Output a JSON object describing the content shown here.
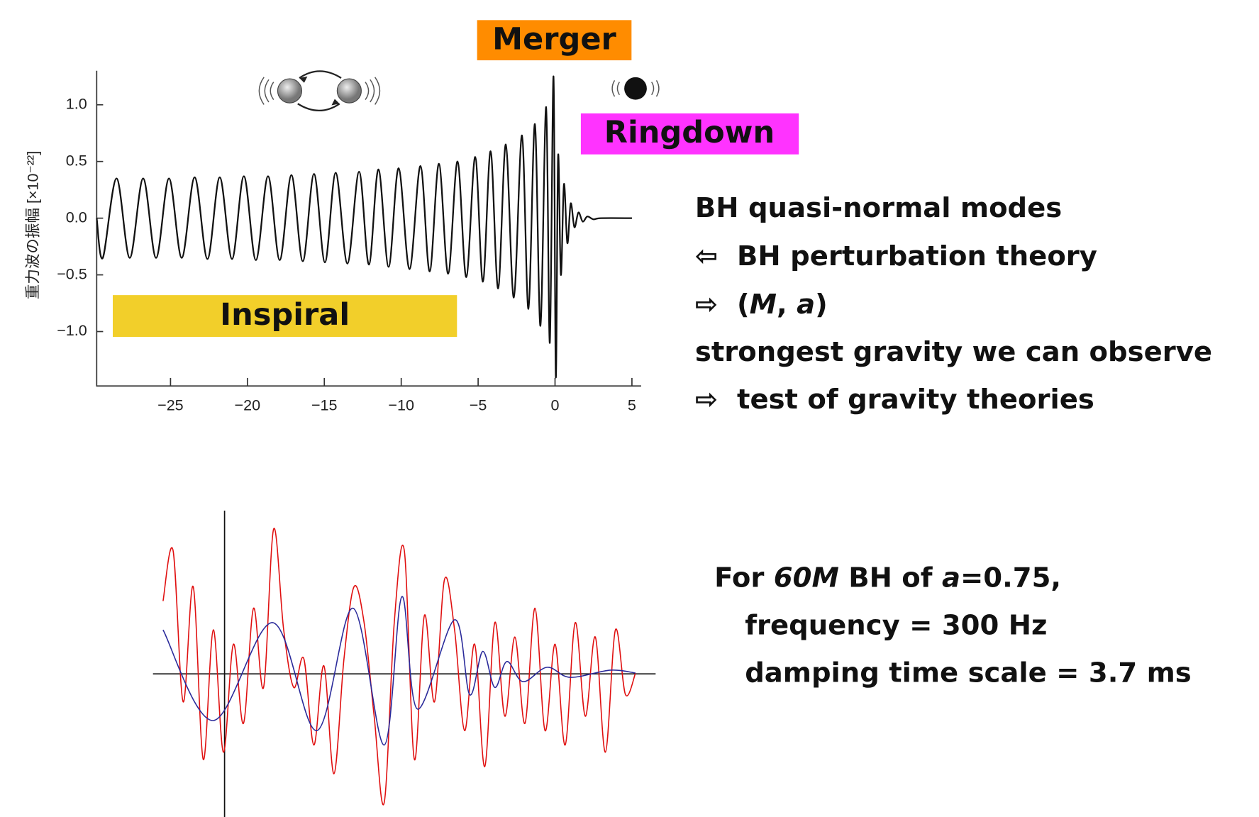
{
  "chart_data": [
    {
      "type": "line",
      "ylabel": "重力波の振幅 [×10⁻²²]",
      "color": "#111111",
      "xlim": [
        -29.8,
        5.6
      ],
      "ylim": [
        -1.48,
        1.3
      ],
      "xticks": [
        {
          "value": -25,
          "label": "−25"
        },
        {
          "value": -20,
          "label": "−20"
        },
        {
          "value": -15,
          "label": "−15"
        },
        {
          "value": -10,
          "label": "−10"
        },
        {
          "value": -5,
          "label": "−5"
        },
        0,
        5
      ],
      "yticks": [
        {
          "value": -1,
          "label": "−1.0"
        },
        {
          "value": -0.5,
          "label": "−0.5"
        },
        {
          "value": 0,
          "label": "0.0"
        },
        0.5,
        {
          "value": 1,
          "label": "1.0"
        }
      ],
      "x": [
        -29.8,
        -29.4,
        -28.51,
        -27.65,
        -26.78,
        -25.94,
        -25.1,
        -24.27,
        -23.43,
        -22.6,
        -21.8,
        -21.0,
        -20.23,
        -19.45,
        -18.66,
        -17.9,
        -17.14,
        -16.4,
        -15.67,
        -14.96,
        -14.26,
        -13.5,
        -12.74,
        -12.1,
        -11.48,
        -10.82,
        -10.17,
        -9.46,
        -8.75,
        -8.15,
        -7.55,
        -6.95,
        -6.34,
        -5.77,
        -5.19,
        -4.69,
        -4.19,
        -3.7,
        -3.2,
        -2.68,
        -2.15,
        -1.73,
        -1.31,
        -0.95,
        -0.58,
        -0.34,
        -0.1,
        0.05,
        0.2,
        0.38,
        0.58,
        0.8,
        1.02,
        1.26,
        1.52,
        1.8,
        2.1,
        2.5,
        3,
        5
      ],
      "values": [
        0,
        -0.35,
        0.35,
        -0.35,
        0.35,
        -0.35,
        0.35,
        -0.35,
        0.36,
        -0.36,
        0.36,
        -0.36,
        0.37,
        -0.37,
        0.37,
        -0.37,
        0.38,
        -0.38,
        0.39,
        -0.39,
        0.4,
        -0.4,
        0.41,
        -0.41,
        0.43,
        -0.43,
        0.44,
        -0.45,
        0.46,
        -0.47,
        0.48,
        -0.49,
        0.5,
        -0.52,
        0.54,
        -0.56,
        0.59,
        -0.62,
        0.65,
        -0.7,
        0.73,
        -0.8,
        0.83,
        -0.95,
        0.98,
        -1.1,
        1.25,
        -1.4,
        0.55,
        -0.5,
        0.3,
        -0.22,
        0.13,
        -0.08,
        0.05,
        -0.03,
        0.015,
        -0.01,
        0,
        0
      ]
    },
    {
      "type": "line",
      "xlim": [
        -14,
        86
      ],
      "ylim": [
        -1.0,
        1.1
      ],
      "series": [
        {
          "color": "#e01010",
          "x": [
            -12,
            -10,
            -8,
            -6,
            -4,
            -2,
            0,
            2,
            4,
            6,
            8,
            10,
            12,
            14,
            16,
            18,
            20,
            22,
            24,
            26,
            28,
            30,
            32,
            34,
            36,
            38,
            40,
            42,
            44,
            46,
            48,
            50,
            52,
            54,
            56,
            58,
            60,
            62,
            64,
            66,
            68,
            70,
            72,
            74,
            76,
            78,
            80,
            82
          ],
          "values": [
            0.5,
            0.85,
            -0.2,
            0.6,
            -0.6,
            0.3,
            -0.55,
            0.2,
            -0.35,
            0.45,
            -0.1,
            1.0,
            0.3,
            -0.1,
            0.1,
            -0.5,
            0.05,
            -0.7,
            0.1,
            0.6,
            0.35,
            -0.3,
            -0.9,
            0.35,
            0.85,
            -0.6,
            0.4,
            -0.2,
            0.65,
            0.3,
            -0.4,
            0.2,
            -0.65,
            0.35,
            -0.3,
            0.25,
            -0.35,
            0.45,
            -0.4,
            0.2,
            -0.5,
            0.35,
            -0.3,
            0.25,
            -0.55,
            0.3,
            -0.15,
            0.0
          ]
        },
        {
          "color": "#2a2a9a",
          "x": [
            -12,
            -2,
            9.8,
            18.6,
            25.8,
            32,
            35.5,
            38.6,
            46,
            49,
            51.6,
            54,
            56.4,
            59.6,
            64.4,
            69,
            77,
            82
          ],
          "values": [
            0.3,
            -0.33,
            0.35,
            -0.4,
            0.45,
            -0.5,
            0.53,
            -0.25,
            0.37,
            -0.15,
            0.15,
            -0.1,
            0.08,
            -0.06,
            0.04,
            -0.03,
            0.02,
            0
          ]
        }
      ]
    }
  ],
  "labels": {
    "merger": "Merger",
    "ringdown": "Ringdown",
    "inspiral": "Inspiral"
  },
  "notes": [
    {
      "segments": [
        {
          "text": "BH quasi-normal modes"
        }
      ]
    },
    {
      "segments": [
        {
          "text": "⇦  BH perturbation theory"
        }
      ]
    },
    {
      "segments": [
        {
          "text": "⇨  ("
        },
        {
          "text": "M",
          "italic": true
        },
        {
          "text": ", "
        },
        {
          "text": "a",
          "italic": true
        },
        {
          "text": ")"
        }
      ]
    },
    {
      "segments": [
        {
          "text": "strongest gravity we can observe"
        }
      ]
    },
    {
      "segments": [
        {
          "text": "⇨  test of gravity theories"
        }
      ]
    }
  ],
  "bh_notes": [
    {
      "segments": [
        {
          "text": "For "
        },
        {
          "text": "60M",
          "italic": true
        },
        {
          "text": " BH of "
        },
        {
          "text": "a",
          "italic": true
        },
        {
          "text": "=0.75,"
        }
      ]
    },
    {
      "segments": [
        {
          "text": "frequency = 300 Hz"
        }
      ]
    },
    {
      "segments": [
        {
          "text": "damping time scale = 3.7 ms"
        }
      ]
    }
  ]
}
